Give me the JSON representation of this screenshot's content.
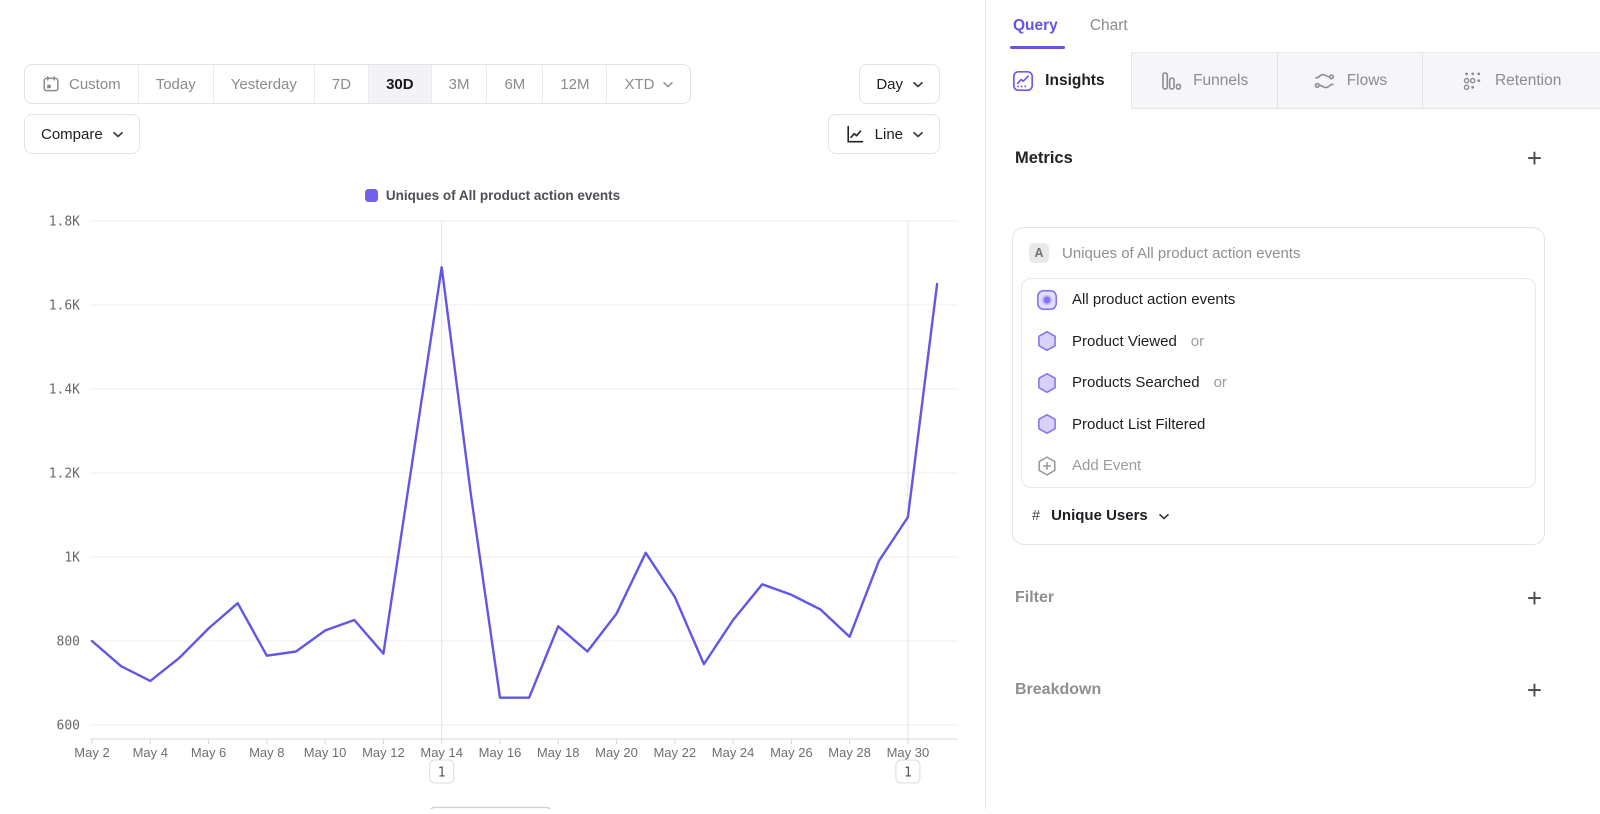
{
  "toolbar": {
    "date_ranges": [
      "Custom",
      "Today",
      "Yesterday",
      "7D",
      "30D",
      "3M",
      "6M",
      "12M",
      "XTD"
    ],
    "active_range": "30D",
    "granularity_label": "Day",
    "compare_label": "Compare",
    "chart_type_label": "Line"
  },
  "chart_data": {
    "type": "line",
    "grid": true,
    "legend_position": "top-center",
    "x": [
      "May 2",
      "May 3",
      "May 4",
      "May 5",
      "May 6",
      "May 7",
      "May 8",
      "May 9",
      "May 10",
      "May 11",
      "May 12",
      "May 13",
      "May 14",
      "May 15",
      "May 16",
      "May 17",
      "May 18",
      "May 19",
      "May 20",
      "May 21",
      "May 22",
      "May 23",
      "May 24",
      "May 25",
      "May 26",
      "May 27",
      "May 28",
      "May 29",
      "May 30",
      "May 31"
    ],
    "series": [
      {
        "name": "Uniques of All product action events",
        "values": [
          800,
          740,
          705,
          760,
          830,
          890,
          765,
          775,
          825,
          850,
          770,
          1230,
          1690,
          1150,
          665,
          665,
          835,
          775,
          865,
          1010,
          905,
          745,
          850,
          935,
          910,
          875,
          810,
          990,
          1095,
          1650
        ]
      }
    ],
    "line_color": "#6156e6",
    "legend_swatch_color": "#7161ea",
    "ylim": [
      600,
      1800
    ],
    "yticks": [
      {
        "value": 600,
        "label": "600"
      },
      {
        "value": 800,
        "label": "800"
      },
      {
        "value": 1000,
        "label": "1K"
      },
      {
        "value": 1200,
        "label": "1.2K"
      },
      {
        "value": 1400,
        "label": "1.4K"
      },
      {
        "value": 1600,
        "label": "1.6K"
      },
      {
        "value": 1800,
        "label": "1.8K"
      }
    ],
    "xtick_labels": [
      "May 2",
      "May 4",
      "May 6",
      "May 8",
      "May 10",
      "May 12",
      "May 14",
      "May 16",
      "May 18",
      "May 20",
      "May 22",
      "May 24",
      "May 26",
      "May 28",
      "May 30"
    ],
    "annotations": [
      {
        "x": "May 14",
        "label": "1"
      },
      {
        "x": "May 30",
        "label": "1"
      }
    ]
  },
  "panel": {
    "plus_glyph": "+",
    "view_tabs": [
      {
        "label": "Query",
        "active": true
      },
      {
        "label": "Chart",
        "active": false
      }
    ],
    "report_tabs": [
      {
        "label": "Insights",
        "icon": "insights-icon",
        "active": true
      },
      {
        "label": "Funnels",
        "icon": "funnels-icon",
        "active": false
      },
      {
        "label": "Flows",
        "icon": "flows-icon",
        "active": false
      },
      {
        "label": "Retention",
        "icon": "retention-icon",
        "active": false
      }
    ],
    "metrics": {
      "title": "Metrics",
      "card": {
        "badge": "A",
        "title": "Uniques of All product action events",
        "events": [
          {
            "name": "All product action events",
            "suffix": "",
            "icon": "custom-event-icon"
          },
          {
            "name": "Product Viewed",
            "suffix": "or",
            "icon": "hexagon-icon"
          },
          {
            "name": "Products Searched",
            "suffix": "or",
            "icon": "hexagon-icon"
          },
          {
            "name": "Product List Filtered",
            "suffix": "",
            "icon": "hexagon-icon"
          }
        ],
        "add_event_label": "Add Event",
        "measurement": {
          "symbol": "#",
          "label": "Unique Users"
        }
      }
    },
    "filter_title": "Filter",
    "breakdown_title": "Breakdown"
  },
  "accent_color": "#6454e6"
}
